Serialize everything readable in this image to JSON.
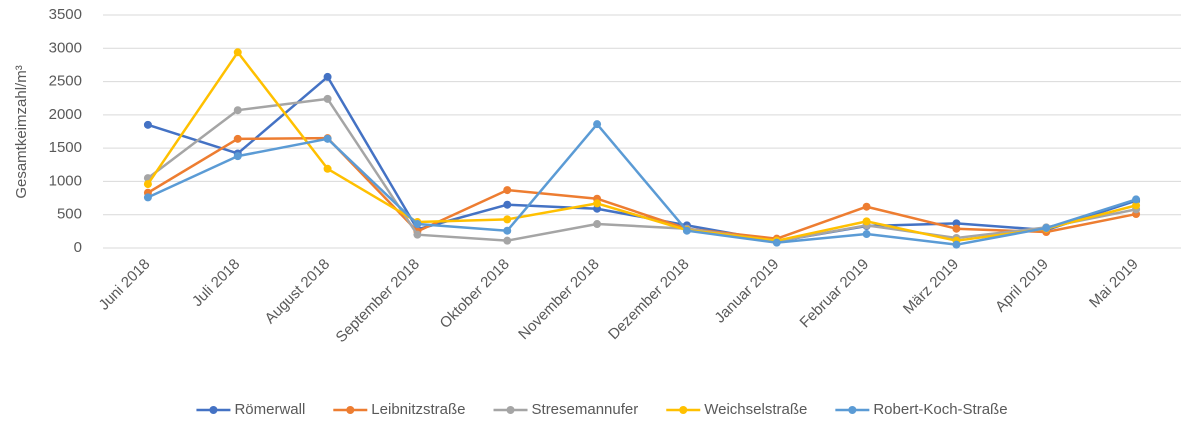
{
  "chart_data": {
    "type": "line",
    "y_label": "Gesamtkeimzahl/m³",
    "categories": [
      "Juni 2018",
      "Juli 2018",
      "August 2018",
      "September 2018",
      "Oktober 2018",
      "November 2018",
      "Dezember 2018",
      "Januar 2019",
      "Februar 2019",
      "März 2019",
      "April 2019",
      "Mai 2019"
    ],
    "series": [
      {
        "name": "Römerwall",
        "color": "#4472c4",
        "values": [
          1850,
          1420,
          2570,
          280,
          650,
          590,
          340,
          100,
          330,
          370,
          270,
          710
        ]
      },
      {
        "name": "Leibnitzstraße",
        "color": "#ed7d31",
        "values": [
          830,
          1640,
          1650,
          250,
          870,
          740,
          290,
          140,
          620,
          290,
          240,
          510
        ]
      },
      {
        "name": "Stresemannufer",
        "color": "#a5a5a5",
        "values": [
          1050,
          2070,
          2240,
          200,
          110,
          360,
          290,
          100,
          340,
          150,
          310,
          580
        ]
      },
      {
        "name": "Weichselstraße",
        "color": "#ffc000",
        "values": [
          960,
          2940,
          1190,
          390,
          430,
          670,
          270,
          110,
          400,
          110,
          290,
          640
        ]
      },
      {
        "name": "Robert-Koch-Straße",
        "color": "#5b9bd5",
        "values": [
          760,
          1380,
          1640,
          360,
          260,
          1860,
          260,
          80,
          210,
          50,
          300,
          730
        ]
      }
    ],
    "ylim": [
      0,
      3500
    ],
    "yticks": [
      0,
      500,
      1000,
      1500,
      2000,
      2500,
      3000,
      3500
    ],
    "grid": true,
    "legend": "bottom"
  }
}
